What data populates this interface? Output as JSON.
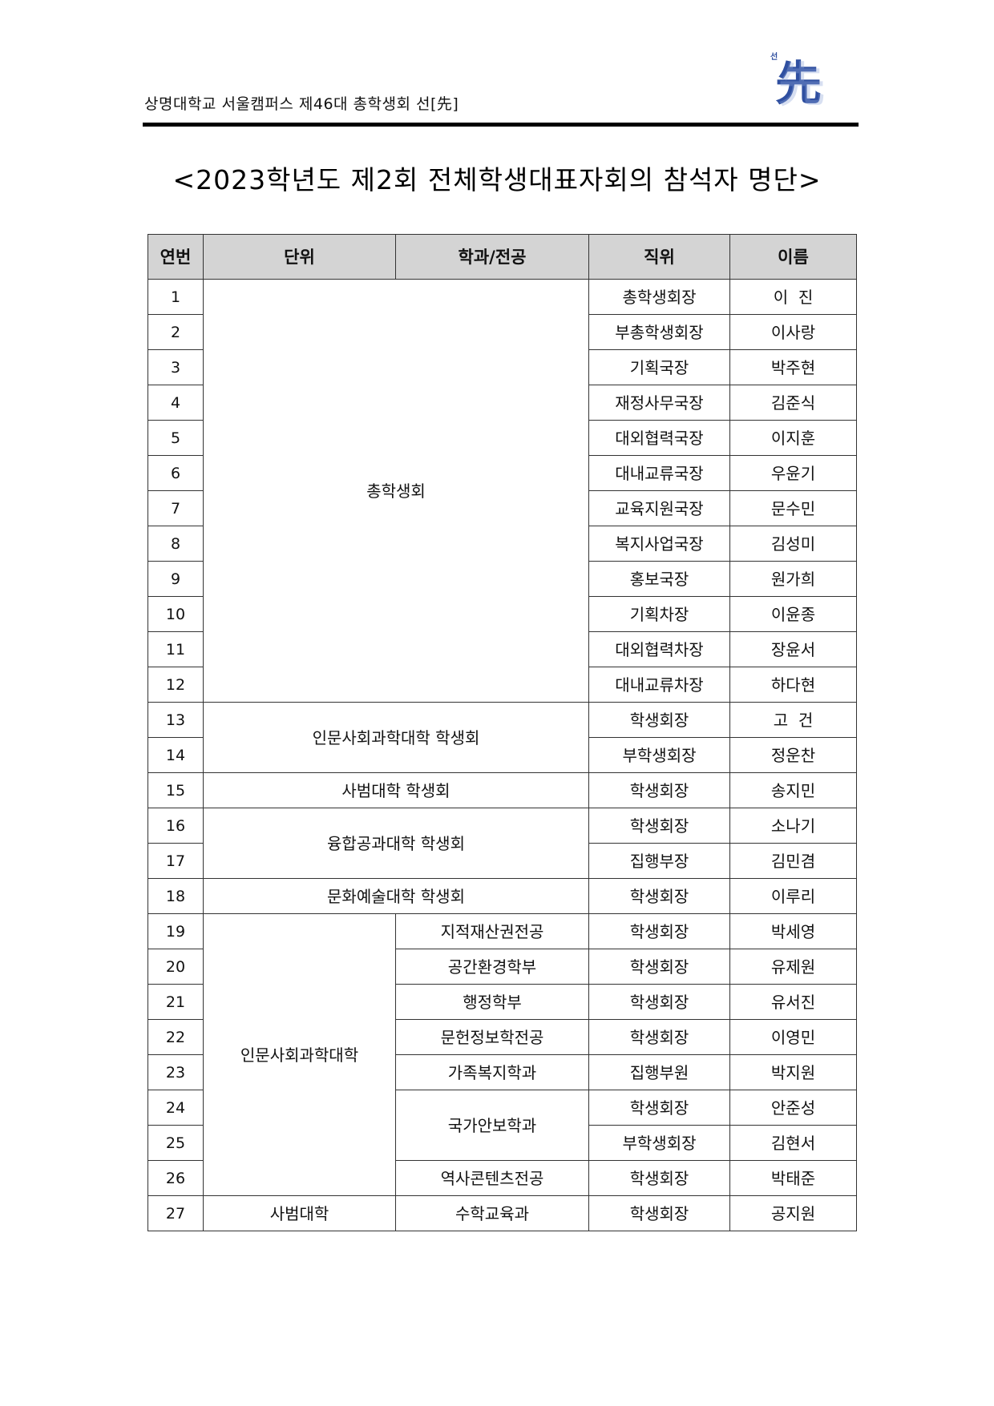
{
  "header": {
    "org_text": "상명대학교 서울캠퍼스 제46대 총학생회 선[先]",
    "logo_small": "선",
    "logo_main": "先"
  },
  "title": "<2023학년도 제2회 전체학생대표자회의 참석자 명단>",
  "table": {
    "columns": [
      "연번",
      "단위",
      "학과/전공",
      "직위",
      "이름"
    ],
    "rows": [
      {
        "no": "1",
        "unit": "총학생회",
        "dept": "",
        "position": "총학생회장",
        "name": "이  진"
      },
      {
        "no": "2",
        "unit": "총학생회",
        "dept": "",
        "position": "부총학생회장",
        "name": "이사랑"
      },
      {
        "no": "3",
        "unit": "총학생회",
        "dept": "",
        "position": "기획국장",
        "name": "박주현"
      },
      {
        "no": "4",
        "unit": "총학생회",
        "dept": "",
        "position": "재정사무국장",
        "name": "김준식"
      },
      {
        "no": "5",
        "unit": "총학생회",
        "dept": "",
        "position": "대외협력국장",
        "name": "이지훈"
      },
      {
        "no": "6",
        "unit": "총학생회",
        "dept": "",
        "position": "대내교류국장",
        "name": "우윤기"
      },
      {
        "no": "7",
        "unit": "총학생회",
        "dept": "",
        "position": "교육지원국장",
        "name": "문수민"
      },
      {
        "no": "8",
        "unit": "총학생회",
        "dept": "",
        "position": "복지사업국장",
        "name": "김성미"
      },
      {
        "no": "9",
        "unit": "총학생회",
        "dept": "",
        "position": "홍보국장",
        "name": "원가희"
      },
      {
        "no": "10",
        "unit": "총학생회",
        "dept": "",
        "position": "기획차장",
        "name": "이윤종"
      },
      {
        "no": "11",
        "unit": "총학생회",
        "dept": "",
        "position": "대외협력차장",
        "name": "장윤서"
      },
      {
        "no": "12",
        "unit": "총학생회",
        "dept": "",
        "position": "대내교류차장",
        "name": "하다현"
      },
      {
        "no": "13",
        "unit": "인문사회과학대학 학생회",
        "dept": "",
        "position": "학생회장",
        "name": "고  건"
      },
      {
        "no": "14",
        "unit": "인문사회과학대학 학생회",
        "dept": "",
        "position": "부학생회장",
        "name": "정운찬"
      },
      {
        "no": "15",
        "unit": "사범대학 학생회",
        "dept": "",
        "position": "학생회장",
        "name": "송지민"
      },
      {
        "no": "16",
        "unit": "융합공과대학 학생회",
        "dept": "",
        "position": "학생회장",
        "name": "소나기"
      },
      {
        "no": "17",
        "unit": "융합공과대학 학생회",
        "dept": "",
        "position": "집행부장",
        "name": "김민겸"
      },
      {
        "no": "18",
        "unit": "문화예술대학 학생회",
        "dept": "",
        "position": "학생회장",
        "name": "이루리"
      },
      {
        "no": "19",
        "unit": "인문사회과학대학",
        "dept": "지적재산권전공",
        "position": "학생회장",
        "name": "박세영"
      },
      {
        "no": "20",
        "unit": "인문사회과학대학",
        "dept": "공간환경학부",
        "position": "학생회장",
        "name": "유제원"
      },
      {
        "no": "21",
        "unit": "인문사회과학대학",
        "dept": "행정학부",
        "position": "학생회장",
        "name": "유서진"
      },
      {
        "no": "22",
        "unit": "인문사회과학대학",
        "dept": "문헌정보학전공",
        "position": "학생회장",
        "name": "이영민"
      },
      {
        "no": "23",
        "unit": "인문사회과학대학",
        "dept": "가족복지학과",
        "position": "집행부원",
        "name": "박지원"
      },
      {
        "no": "24",
        "unit": "인문사회과학대학",
        "dept": "국가안보학과",
        "position": "학생회장",
        "name": "안준성"
      },
      {
        "no": "25",
        "unit": "인문사회과학대학",
        "dept": "국가안보학과",
        "position": "부학생회장",
        "name": "김현서"
      },
      {
        "no": "26",
        "unit": "인문사회과학대학",
        "dept": "역사콘텐츠전공",
        "position": "학생회장",
        "name": "박태준"
      },
      {
        "no": "27",
        "unit": "사범대학",
        "dept": "수학교육과",
        "position": "학생회장",
        "name": "공지원"
      }
    ]
  },
  "colors": {
    "header_fill": "#d4d4d4",
    "logo_blue": "#2f4fa0",
    "border": "#333333"
  }
}
